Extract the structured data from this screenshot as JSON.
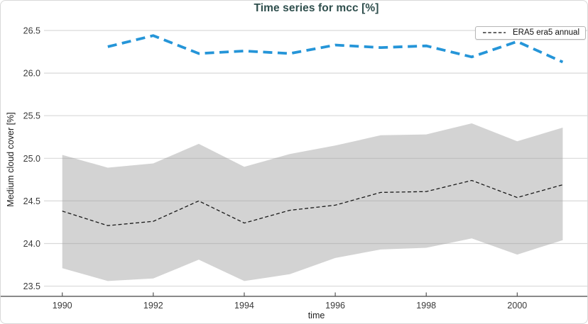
{
  "title": "Time series for mcc [%]",
  "legend": {
    "items": [
      "ERA5 era5 annual"
    ]
  },
  "colors": {
    "title_text": "#2f4f4d",
    "blue_line": "#2595d8",
    "black_line": "#1a1a1a",
    "band_fill_rgba": "rgba(158,158,158,0.45)",
    "gridline": "#d9d9d9",
    "axis_spine": "#444444",
    "tick_mark": "#555555",
    "tick_text": "#3a3a3a"
  },
  "chart_data": {
    "type": "line",
    "title": "Time series for mcc [%]",
    "xlabel": "time",
    "ylabel": "Medium cloud cover [%]",
    "xlim": [
      1989.63,
      2001.54
    ],
    "ylim": [
      23.38,
      26.6
    ],
    "xticks": [
      1990,
      1992,
      1994,
      1996,
      1998,
      2000
    ],
    "yticks": [
      23.5,
      24.0,
      24.5,
      25.0,
      25.5,
      26.0,
      26.5
    ],
    "grid": "horizontal",
    "legend_position": "top-right",
    "legend_entries": [
      "ERA5 era5 annual"
    ],
    "series": [
      {
        "name": "ERA5 era5 annual",
        "style": "black-dashed",
        "x": [
          1990,
          1991,
          1992,
          1993,
          1994,
          1995,
          1996,
          1997,
          1998,
          1999,
          2000,
          2001
        ],
        "y": [
          24.38,
          24.21,
          24.26,
          24.5,
          24.24,
          24.39,
          24.45,
          24.6,
          24.61,
          24.74,
          24.54,
          24.69
        ]
      },
      {
        "name": "",
        "style": "blue-dashed",
        "x": [
          1991,
          1992,
          1993,
          1994,
          1995,
          1996,
          1997,
          1998,
          1999,
          2000,
          2001
        ],
        "y": [
          26.31,
          26.44,
          26.23,
          26.26,
          26.23,
          26.33,
          26.3,
          26.32,
          26.19,
          26.37,
          26.13
        ]
      }
    ],
    "band": {
      "x": [
        1990,
        1991,
        1992,
        1993,
        1994,
        1995,
        1996,
        1997,
        1998,
        1999,
        2000,
        2001
      ],
      "upper": [
        25.04,
        24.89,
        24.94,
        25.17,
        24.9,
        25.05,
        25.15,
        25.27,
        25.28,
        25.41,
        25.2,
        25.36
      ],
      "lower": [
        23.71,
        23.56,
        23.59,
        23.81,
        23.56,
        23.64,
        23.83,
        23.93,
        23.95,
        24.06,
        23.87,
        24.04
      ]
    }
  }
}
